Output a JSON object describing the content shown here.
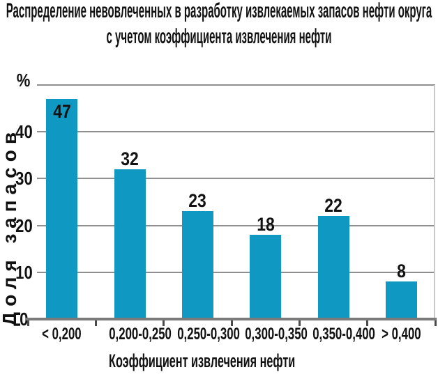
{
  "page": {
    "background": "#ffffff"
  },
  "title": "Распределение невовлеченных в разработку извлекаемых запасов нефти округа\nс учетом коэффициента извлечения нефти",
  "chart_data": {
    "type": "bar",
    "title": "Распределение невовлеченных в разработку извлекаемых запасов нефти округа с учетом коэффициента извлечения нефти",
    "categories": [
      "< 0,200",
      "0,200-0,250",
      "0,250-0,300",
      "0,300-0,350",
      "0,350-0,400",
      "> 0,400"
    ],
    "values": [
      47,
      32,
      23,
      18,
      22,
      8
    ],
    "xlabel": "Коэффициент извлечения нефти",
    "ylabel": "Доля запасов",
    "y_unit": "%",
    "ylim": [
      0,
      50
    ],
    "yticks": [
      0,
      10,
      20,
      30,
      40
    ],
    "gridlines": [
      10,
      20,
      30,
      40,
      50
    ],
    "grid": true,
    "legend": false,
    "bar_color": "#0F99C2",
    "grid_color": "#8f8f8f",
    "axis_color": "#7b7b7b",
    "tick_color": "#4a4a4a",
    "plot_border_color": "#c9c9c9",
    "text_color": "#111111"
  }
}
